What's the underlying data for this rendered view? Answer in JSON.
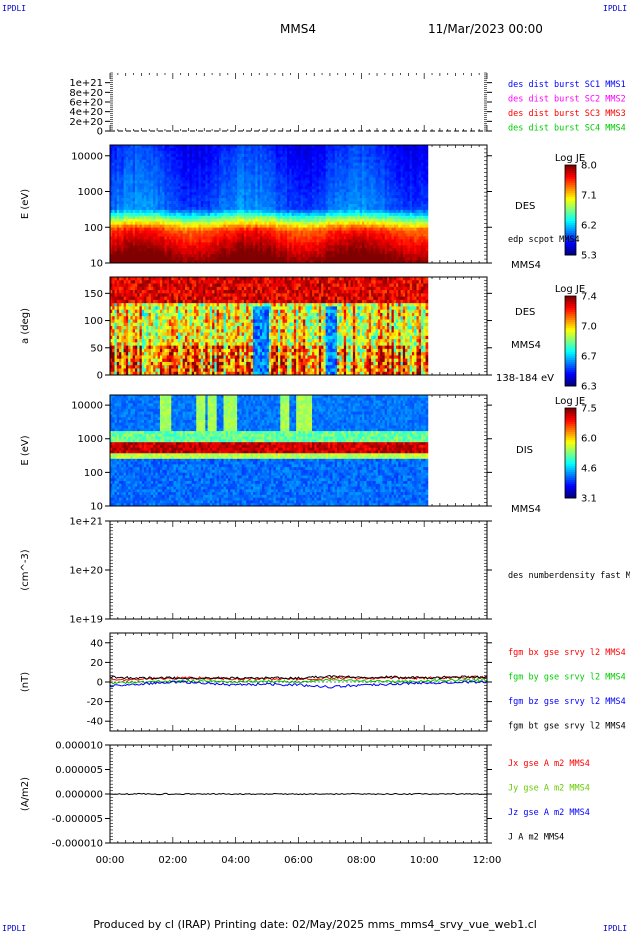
{
  "header": {
    "corner_tl": "IPDLI",
    "corner_tr": "IPDLI",
    "corner_bl": "IPDLI",
    "corner_br": "IPDLI",
    "spacecraft": "MMS4",
    "date": "11/Mar/2023 00:00"
  },
  "footer": {
    "text": "Produced by cl (IRAP)   Printing date: 02/May/2025   mms_mms4_srvy_vue_web1.cl"
  },
  "colors": {
    "mms1": "#0000ff",
    "mms2": "#ff00ff",
    "mms3": "#ff0000",
    "mms4": "#00cc00",
    "bx": "#ff0000",
    "by": "#00cc00",
    "bz": "#0000ff",
    "bt": "#000000",
    "jx": "#ff0000",
    "jy": "#66cc00",
    "jz": "#0000ff",
    "j": "#000000"
  },
  "chart_data": {
    "type": "multi-panel time series",
    "x_axis": {
      "range": [
        "00:00",
        "12:00"
      ],
      "ticks": [
        "00:00",
        "02:00",
        "04:00",
        "06:00",
        "08:00",
        "10:00",
        "12:00"
      ]
    },
    "data_end": "10:07",
    "panels": [
      {
        "id": "burst",
        "type": "line",
        "ylabel": "",
        "ylim": [
          0,
          1.2e+21
        ],
        "ytick_labels": [
          "1e+21",
          "8e+20",
          "6e+20",
          "4e+20",
          "2e+20",
          "0"
        ],
        "ytick_values": [
          1e+21,
          8e+20,
          6e+20,
          4e+20,
          2e+20,
          0
        ],
        "legend": [
          "des dist burst SC1 MMS1",
          "des dist burst SC2 MMS2",
          "des dist burst SC3 MMS3",
          "des dist burst SC4 MMS4"
        ]
      },
      {
        "id": "des_energy",
        "type": "heatmap",
        "ylabel": "E (eV)",
        "yscale": "log",
        "ylim": [
          10,
          20000
        ],
        "ytick_labels": [
          "10000",
          "1000",
          "100",
          "10"
        ],
        "ytick_values": [
          10000,
          1000,
          100,
          10
        ],
        "labels": [
          "DES",
          "edp scpot MMS4",
          "MMS4"
        ],
        "colorbar": {
          "title": "Log JE",
          "ticks": [
            "8.0",
            "7.1",
            "6.2",
            "5.3"
          ]
        }
      },
      {
        "id": "des_pitch",
        "type": "heatmap",
        "ylabel": "a (deg)",
        "ylim": [
          0,
          180
        ],
        "ytick_labels": [
          "150",
          "100",
          "50",
          "0"
        ],
        "ytick_values": [
          150,
          100,
          50,
          0
        ],
        "labels": [
          "DES",
          "MMS4",
          "138-184 eV"
        ],
        "colorbar": {
          "title": "Log JE",
          "ticks": [
            "7.4",
            "7.0",
            "6.7",
            "6.3"
          ]
        }
      },
      {
        "id": "dis_energy",
        "type": "heatmap",
        "ylabel": "E (eV)",
        "yscale": "log",
        "ylim": [
          10,
          20000
        ],
        "ytick_labels": [
          "10000",
          "1000",
          "100",
          "10"
        ],
        "ytick_values": [
          10000,
          1000,
          100,
          10
        ],
        "labels": [
          "DIS",
          "MMS4"
        ],
        "colorbar": {
          "title": "Log JE",
          "ticks": [
            "7.5",
            "6.0",
            "4.6",
            "3.1"
          ]
        }
      },
      {
        "id": "density",
        "type": "line",
        "ylabel": "(cm^-3)",
        "yscale": "log",
        "ylim": [
          1e+19,
          1e+21
        ],
        "ytick_labels": [
          "1e+21",
          "1e+20",
          "1e+19"
        ],
        "ytick_values": [
          1e+21,
          1e+20,
          1e+19
        ],
        "legend": [
          "des numberdensity fast M"
        ]
      },
      {
        "id": "fgm",
        "type": "line",
        "ylabel": "(nT)",
        "ylim": [
          -50,
          50
        ],
        "ytick_labels": [
          "40",
          "20",
          "0",
          "-20",
          "-40"
        ],
        "ytick_values": [
          40,
          20,
          0,
          -20,
          -40
        ],
        "legend": [
          "fgm bx gse srvy l2 MMS4",
          "fgm by gse srvy l2 MMS4",
          "fgm bz gse srvy l2 MMS4",
          "fgm bt gse srvy l2 MMS4"
        ],
        "series": [
          {
            "name": "fgm bx gse srvy l2 MMS4",
            "x": [
              0,
              1,
              2,
              3,
              4,
              5,
              6,
              7,
              8,
              9,
              10,
              11,
              12
            ],
            "values": [
              2,
              3,
              4,
              4,
              3,
              3,
              3,
              4,
              4,
              4,
              4,
              5,
              5
            ]
          },
          {
            "name": "fgm by gse srvy l2 MMS4",
            "x": [
              0,
              1,
              2,
              3,
              4,
              5,
              6,
              7,
              8,
              9,
              10,
              11,
              12
            ],
            "values": [
              -1,
              0,
              1,
              1,
              0,
              1,
              0,
              2,
              1,
              0,
              1,
              2,
              2
            ]
          },
          {
            "name": "fgm bz gse srvy l2 MMS4",
            "x": [
              0,
              1,
              2,
              3,
              4,
              5,
              6,
              7,
              8,
              9,
              10,
              11,
              12
            ],
            "values": [
              -4,
              -2,
              0,
              -1,
              -3,
              -2,
              -3,
              -5,
              -3,
              -2,
              -1,
              0,
              0
            ]
          },
          {
            "name": "fgm bt gse srvy l2 MMS4",
            "x": [
              0,
              1,
              2,
              3,
              4,
              5,
              6,
              7,
              8,
              9,
              10,
              11,
              12
            ],
            "values": [
              5,
              4,
              4,
              4,
              4,
              4,
              4,
              6,
              5,
              5,
              4,
              5,
              5
            ]
          }
        ]
      },
      {
        "id": "current",
        "type": "line",
        "ylabel": "(A/m2)",
        "ylim": [
          -1e-05,
          1e-05
        ],
        "ytick_labels": [
          "0.000010",
          "0.000005",
          "0.000000",
          "-0.000005",
          "-0.000010"
        ],
        "ytick_values": [
          1e-05,
          5e-06,
          0,
          -5e-06,
          -1e-05
        ],
        "legend": [
          "Jx gse A m2 MMS4",
          "Jy gse A m2 MMS4",
          "Jz gse A m2 MMS4",
          "J A m2 MMS4"
        ],
        "series": [
          {
            "name": "J A m2 MMS4",
            "x": [
              0,
              2,
              4,
              6,
              8,
              10,
              12
            ],
            "values": [
              0,
              0,
              0,
              0,
              0,
              0,
              0
            ]
          }
        ]
      }
    ]
  }
}
